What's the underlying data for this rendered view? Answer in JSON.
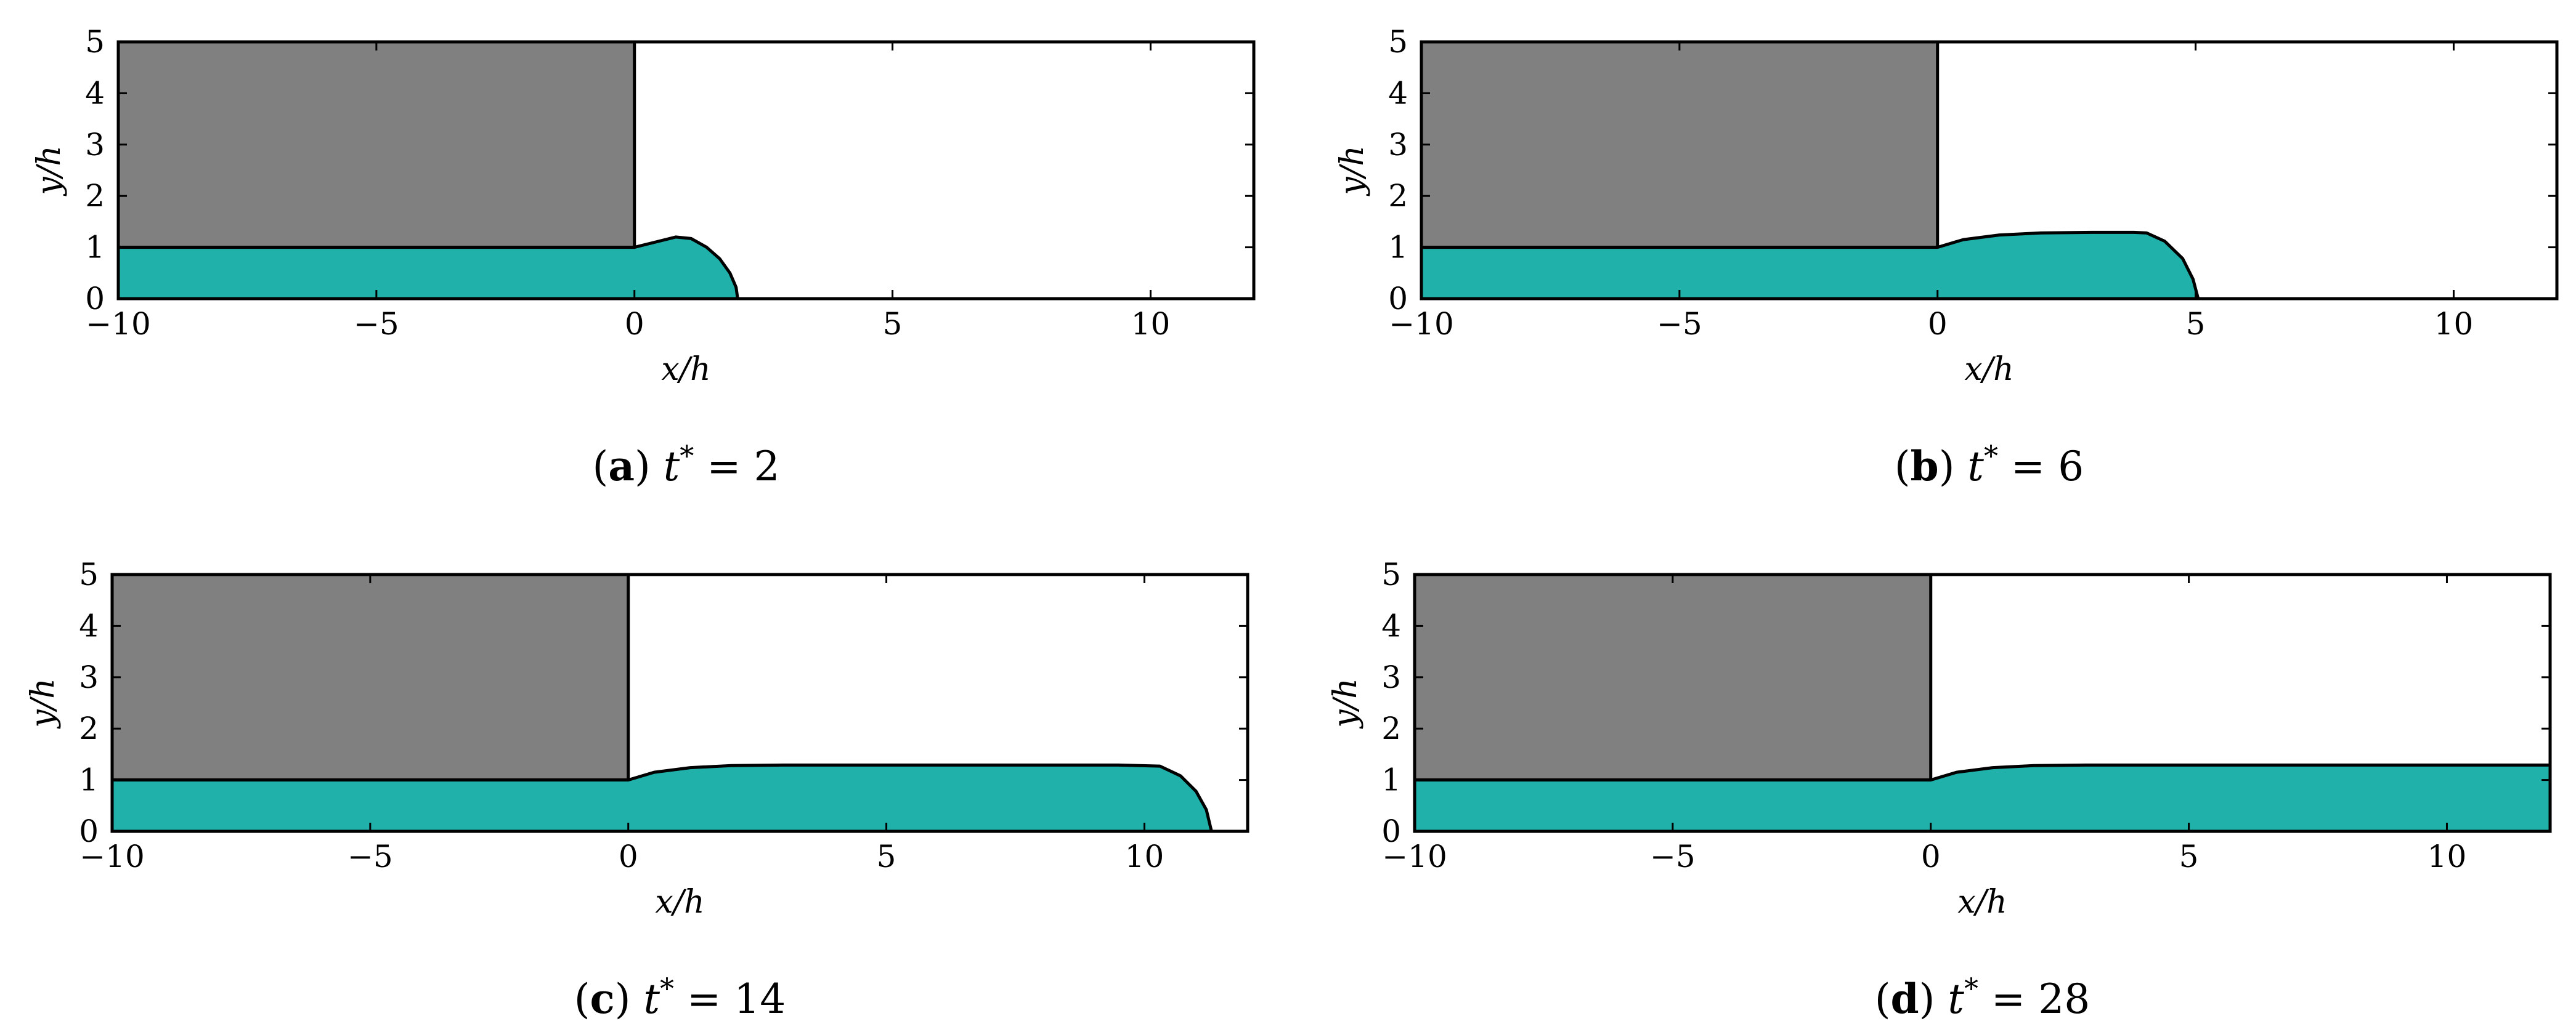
{
  "colors": {
    "solid": "#808080",
    "fluid": "#20b2aa",
    "edge": "#000000",
    "background": "#ffffff"
  },
  "chart_data": [
    {
      "type": "area",
      "panel": "a",
      "caption_letter": "a",
      "caption_var": "t",
      "caption_sup": "*",
      "caption_rest": " = 2",
      "t_star": 2,
      "xlabel": "x/h",
      "ylabel": "y/h",
      "xlim": [
        -10,
        12
      ],
      "ylim": [
        0,
        5
      ],
      "xticks": [
        -10,
        -5,
        0,
        5,
        10
      ],
      "xtick_labels": [
        "−10",
        "−5",
        "0",
        "5",
        "10"
      ],
      "yticks": [
        0,
        1,
        2,
        3,
        4,
        5
      ],
      "ytick_labels": [
        "0",
        "1",
        "2",
        "3",
        "4",
        "5"
      ],
      "solid_block": {
        "x": [
          -10,
          0
        ],
        "y": [
          1,
          5
        ]
      },
      "fluid_profile": {
        "x": [
          -10,
          0,
          0.4,
          0.8,
          1.1,
          1.4,
          1.65,
          1.85,
          1.97,
          2.0
        ],
        "y": [
          1,
          1,
          1.1,
          1.2,
          1.17,
          1.0,
          0.78,
          0.5,
          0.22,
          0
        ]
      }
    },
    {
      "type": "area",
      "panel": "b",
      "caption_letter": "b",
      "caption_var": "t",
      "caption_sup": "*",
      "caption_rest": " = 6",
      "t_star": 6,
      "xlabel": "x/h",
      "ylabel": "y/h",
      "xlim": [
        -10,
        12
      ],
      "ylim": [
        0,
        5
      ],
      "xticks": [
        -10,
        -5,
        0,
        5,
        10
      ],
      "xtick_labels": [
        "−10",
        "−5",
        "0",
        "5",
        "10"
      ],
      "yticks": [
        0,
        1,
        2,
        3,
        4,
        5
      ],
      "ytick_labels": [
        "0",
        "1",
        "2",
        "3",
        "4",
        "5"
      ],
      "solid_block": {
        "x": [
          -10,
          0
        ],
        "y": [
          1,
          5
        ]
      },
      "fluid_profile": {
        "x": [
          -10,
          0,
          0.5,
          1.2,
          2.0,
          3.0,
          3.8,
          4.05,
          4.4,
          4.75,
          4.95,
          5.05
        ],
        "y": [
          1,
          1,
          1.15,
          1.24,
          1.28,
          1.29,
          1.29,
          1.28,
          1.12,
          0.78,
          0.38,
          0
        ]
      }
    },
    {
      "type": "area",
      "panel": "c",
      "caption_letter": "c",
      "caption_var": "t",
      "caption_sup": "*",
      "caption_rest": " = 14",
      "t_star": 14,
      "xlabel": "x/h",
      "ylabel": "y/h",
      "xlim": [
        -10,
        12
      ],
      "ylim": [
        0,
        5
      ],
      "xticks": [
        -10,
        -5,
        0,
        5,
        10
      ],
      "xtick_labels": [
        "−10",
        "−5",
        "0",
        "5",
        "10"
      ],
      "yticks": [
        0,
        1,
        2,
        3,
        4,
        5
      ],
      "ytick_labels": [
        "0",
        "1",
        "2",
        "3",
        "4",
        "5"
      ],
      "solid_block": {
        "x": [
          -10,
          0
        ],
        "y": [
          1,
          5
        ]
      },
      "fluid_profile": {
        "x": [
          -10,
          0,
          0.5,
          1.2,
          2.0,
          3.0,
          6.0,
          9.5,
          10.3,
          10.7,
          11.0,
          11.2,
          11.3
        ],
        "y": [
          1,
          1,
          1.15,
          1.24,
          1.28,
          1.29,
          1.29,
          1.29,
          1.27,
          1.08,
          0.78,
          0.42,
          0
        ]
      }
    },
    {
      "type": "area",
      "panel": "d",
      "caption_letter": "d",
      "caption_var": "t",
      "caption_sup": "*",
      "caption_rest": " = 28",
      "t_star": 28,
      "xlabel": "x/h",
      "ylabel": "y/h",
      "xlim": [
        -10,
        12
      ],
      "ylim": [
        0,
        5
      ],
      "xticks": [
        -10,
        -5,
        0,
        5,
        10
      ],
      "xtick_labels": [
        "−10",
        "−5",
        "0",
        "5",
        "10"
      ],
      "yticks": [
        0,
        1,
        2,
        3,
        4,
        5
      ],
      "ytick_labels": [
        "0",
        "1",
        "2",
        "3",
        "4",
        "5"
      ],
      "solid_block": {
        "x": [
          -10,
          0
        ],
        "y": [
          1,
          5
        ]
      },
      "fluid_profile": {
        "x": [
          -10,
          0,
          0.5,
          1.2,
          2.0,
          3.0,
          12
        ],
        "y": [
          1,
          1,
          1.15,
          1.24,
          1.28,
          1.29,
          1.29
        ]
      }
    }
  ]
}
